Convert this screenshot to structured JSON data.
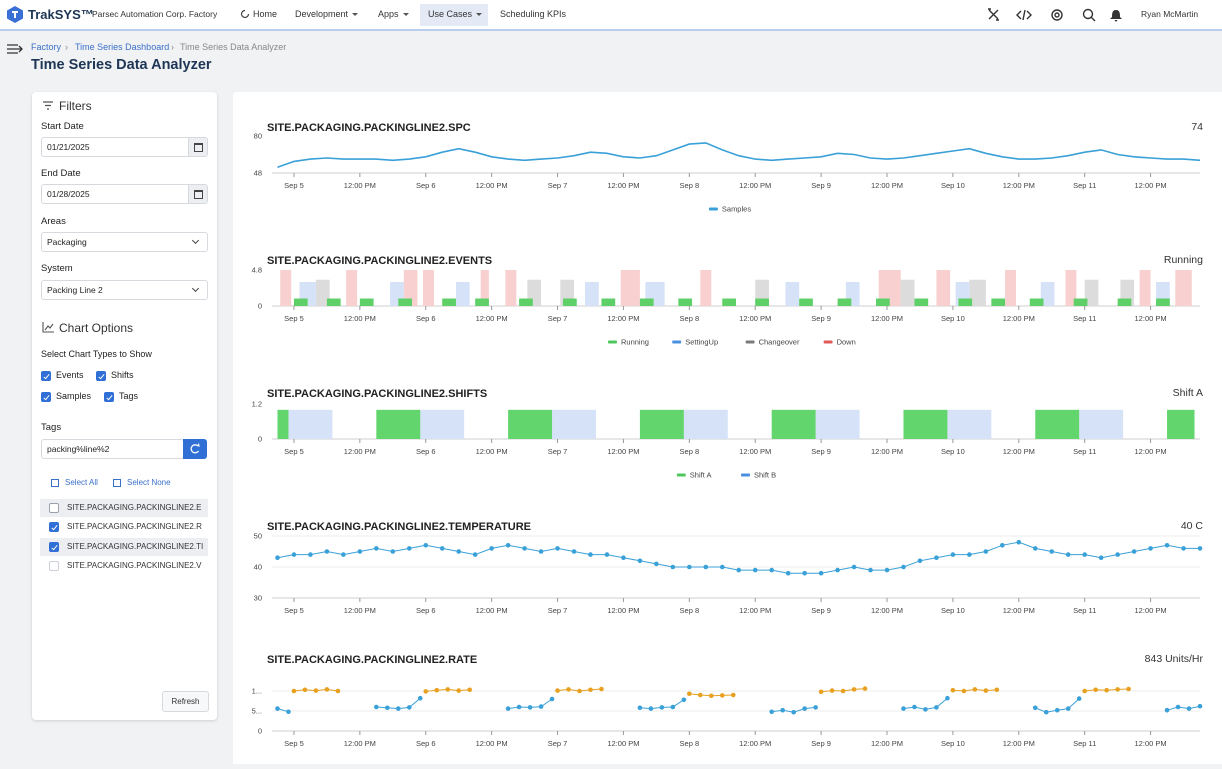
{
  "header": {
    "brand": "TrakSYS™",
    "org": "Parsec Automation Corp. Factory",
    "nav": [
      "Home",
      "Development",
      "Apps",
      "Use Cases",
      "Scheduling KPIs"
    ],
    "user": "Ryan McMartin"
  },
  "breadcrumb": [
    "Factory",
    "Time Series Dashboard",
    "Time Series Data Analyzer"
  ],
  "title": "Time Series Data Analyzer",
  "filters": {
    "heading": "Filters",
    "start_label": "Start Date",
    "start_value": "01/21/2025",
    "end_label": "End Date",
    "end_value": "01/28/2025",
    "areas_label": "Areas",
    "areas_value": "Packaging",
    "system_label": "System",
    "system_value": "Packing Line 2"
  },
  "chart_options": {
    "heading": "Chart Options",
    "types_label": "Select Chart Types to Show",
    "types": [
      {
        "label": "Events",
        "checked": true
      },
      {
        "label": "Shifts",
        "checked": true
      },
      {
        "label": "Samples",
        "checked": true
      },
      {
        "label": "Tags",
        "checked": true
      }
    ]
  },
  "tags": {
    "label": "Tags",
    "value": "packing%line%2",
    "select_all": "Select All",
    "select_none": "Select None",
    "items": [
      {
        "label": "SITE.PACKAGING.PACKINGLINE2.E",
        "checked": false
      },
      {
        "label": "SITE.PACKAGING.PACKINGLINE2.R",
        "checked": true
      },
      {
        "label": "SITE.PACKAGING.PACKINGLINE2.TI",
        "checked": true
      },
      {
        "label": "SITE.PACKAGING.PACKINGLINE2.V",
        "checked": false
      }
    ]
  },
  "refresh": "Refresh",
  "chart_data": [
    {
      "type": "line",
      "title": "SITE.PACKAGING.PACKINGLINE2.SPC",
      "readout": "74",
      "xlim": [
        -4,
        165
      ],
      "xticks": [
        {
          "value": 0,
          "label": "Sep 5"
        },
        {
          "value": 12,
          "label": "12:00 PM"
        },
        {
          "value": 24,
          "label": "Sep 6"
        },
        {
          "value": 36,
          "label": "12:00 PM"
        },
        {
          "value": 48,
          "label": "Sep 7"
        },
        {
          "value": 60,
          "label": "12:00 PM"
        },
        {
          "value": 72,
          "label": "Sep 8"
        },
        {
          "value": 84,
          "label": "12:00 PM"
        },
        {
          "value": 96,
          "label": "Sep 9"
        },
        {
          "value": 108,
          "label": "12:00 PM"
        },
        {
          "value": 120,
          "label": "Sep 10"
        },
        {
          "value": 132,
          "label": "12:00 PM"
        },
        {
          "value": 144,
          "label": "Sep 11"
        },
        {
          "value": 156,
          "label": "12:00 PM"
        }
      ],
      "ylim": [
        48,
        80
      ],
      "yticks": [
        48,
        80
      ],
      "grid": false,
      "legend": "bottom",
      "x": [
        -3,
        0,
        3,
        6,
        9,
        12,
        15,
        18,
        21,
        24,
        27,
        30,
        33,
        36,
        39,
        42,
        45,
        48,
        51,
        54,
        57,
        60,
        63,
        66,
        69,
        72,
        75,
        78,
        81,
        84,
        87,
        90,
        93,
        96,
        99,
        102,
        105,
        108,
        111,
        114,
        117,
        120,
        123,
        126,
        129,
        132,
        135,
        138,
        141,
        144,
        147,
        150,
        153,
        156,
        159,
        162,
        165
      ],
      "series": [
        {
          "name": "Samples",
          "color": "#3aa0d8",
          "values": [
            53,
            58,
            60,
            61,
            60,
            60,
            60,
            59,
            60,
            62,
            66,
            69,
            66,
            62,
            60,
            59,
            60,
            61,
            63,
            66,
            65,
            62,
            61,
            63,
            68,
            73,
            74,
            68,
            63,
            60,
            59,
            60,
            61,
            62,
            65,
            64,
            61,
            60,
            61,
            63,
            65,
            67,
            69,
            65,
            62,
            60,
            60,
            61,
            63,
            66,
            68,
            64,
            62,
            61,
            60,
            60,
            59
          ]
        }
      ]
    },
    {
      "type": "timeline",
      "title": "SITE.PACKAGING.PACKINGLINE2.EVENTS",
      "readout": "Running",
      "xlim": [
        -4,
        165
      ],
      "xticks": [
        {
          "value": 0,
          "label": "Sep 5"
        },
        {
          "value": 12,
          "label": "12:00 PM"
        },
        {
          "value": 24,
          "label": "Sep 6"
        },
        {
          "value": 36,
          "label": "12:00 PM"
        },
        {
          "value": 48,
          "label": "Sep 7"
        },
        {
          "value": 60,
          "label": "12:00 PM"
        },
        {
          "value": 72,
          "label": "Sep 8"
        },
        {
          "value": 84,
          "label": "12:00 PM"
        },
        {
          "value": 96,
          "label": "Sep 9"
        },
        {
          "value": 108,
          "label": "12:00 PM"
        },
        {
          "value": 120,
          "label": "Sep 10"
        },
        {
          "value": 132,
          "label": "12:00 PM"
        },
        {
          "value": 144,
          "label": "Sep 11"
        },
        {
          "value": 156,
          "label": "12:00 PM"
        }
      ],
      "ylim": [
        0,
        4.8
      ],
      "yticks": [
        0,
        4.8
      ],
      "grid": false,
      "legend": "bottom",
      "series": [
        {
          "name": "Running",
          "color": "#4fc75c",
          "fill": "#5fd068",
          "x": [
            0,
            6,
            12,
            19,
            27,
            33,
            41,
            49,
            56,
            63,
            70,
            78,
            84,
            92,
            99,
            106,
            113,
            121,
            127,
            134,
            142,
            150,
            157
          ],
          "x_end": [
            2.5,
            8.5,
            14.5,
            21.5,
            29.5,
            35.5,
            43.5,
            51.5,
            58.5,
            65.5,
            72.5,
            80.5,
            86.5,
            94.5,
            101.5,
            108.5,
            115.5,
            123.5,
            129.5,
            136.5,
            144.5,
            152.5,
            159.5
          ],
          "values": [
            1,
            1,
            1,
            1,
            1,
            1,
            1,
            1,
            1,
            1,
            1,
            1,
            1,
            1,
            1,
            1,
            1,
            1,
            1,
            1,
            1,
            1,
            1
          ]
        },
        {
          "name": "SettingUp",
          "color": "#4a8fe0",
          "fill": "#d6e2f7",
          "x": [
            1,
            17.5,
            29.5,
            53,
            64,
            89.5,
            100.5,
            120.5,
            136,
            157
          ],
          "x_end": [
            4,
            20,
            32,
            55.5,
            67.5,
            92,
            103,
            123,
            138.5,
            159.5
          ],
          "values": [
            3.2,
            3.2,
            3.2,
            3.2,
            3.2,
            3.2,
            3.2,
            3.2,
            3.2,
            3.2
          ]
        },
        {
          "name": "Changeover",
          "color": "#7a7a7a",
          "fill": "#dcdcdc",
          "x": [
            4,
            42.5,
            48.5,
            84,
            110.5,
            123,
            144,
            150.5
          ],
          "x_end": [
            6.5,
            45,
            51,
            86.5,
            113,
            126,
            146.5,
            153
          ],
          "values": [
            3.5,
            3.5,
            3.5,
            3.5,
            3.5,
            3.5,
            3.5,
            3.5
          ]
        },
        {
          "name": "Down",
          "color": "#e05a5a",
          "fill": "#f8d0d0",
          "x": [
            -2.5,
            9.5,
            20,
            23.5,
            34,
            38.5,
            59.5,
            74,
            106.5,
            117,
            129.5,
            140.5,
            154,
            160.5
          ],
          "x_end": [
            -0.5,
            11.5,
            22.5,
            25.5,
            35.5,
            40.5,
            63,
            76,
            110.5,
            119.5,
            131.5,
            142.5,
            156,
            163.5
          ],
          "values": [
            4.8,
            4.8,
            4.8,
            4.8,
            4.8,
            4.8,
            4.8,
            4.8,
            4.8,
            4.8,
            4.8,
            4.8,
            4.8,
            4.8
          ]
        }
      ]
    },
    {
      "type": "timeline",
      "title": "SITE.PACKAGING.PACKINGLINE2.SHIFTS",
      "readout": "Shift A",
      "xlim": [
        -4,
        165
      ],
      "xticks": [
        {
          "value": 0,
          "label": "Sep 5"
        },
        {
          "value": 12,
          "label": "12:00 PM"
        },
        {
          "value": 24,
          "label": "Sep 6"
        },
        {
          "value": 36,
          "label": "12:00 PM"
        },
        {
          "value": 48,
          "label": "Sep 7"
        },
        {
          "value": 60,
          "label": "12:00 PM"
        },
        {
          "value": 72,
          "label": "Sep 8"
        },
        {
          "value": 84,
          "label": "12:00 PM"
        },
        {
          "value": 96,
          "label": "Sep 9"
        },
        {
          "value": 108,
          "label": "12:00 PM"
        },
        {
          "value": 120,
          "label": "Sep 10"
        },
        {
          "value": 132,
          "label": "12:00 PM"
        },
        {
          "value": 144,
          "label": "Sep 11"
        },
        {
          "value": 156,
          "label": "12:00 PM"
        }
      ],
      "ylim": [
        0,
        1.2
      ],
      "yticks": [
        0,
        1.2
      ],
      "grid": false,
      "legend": "bottom",
      "series": [
        {
          "name": "Shift A",
          "color": "#4fc75c",
          "fill": "#62d56c",
          "x": [
            -3,
            15,
            39,
            63,
            87,
            111,
            135,
            159
          ],
          "x_end": [
            -1,
            23,
            47,
            71,
            95,
            119,
            143,
            164
          ],
          "values": [
            1,
            1,
            1,
            1,
            1,
            1,
            1,
            1
          ]
        },
        {
          "name": "Shift B",
          "color": "#4a8fe0",
          "fill": "#d6e2f7",
          "x": [
            -1,
            23,
            47,
            71,
            95,
            119,
            143
          ],
          "x_end": [
            7,
            31,
            55,
            79,
            103,
            127,
            151
          ],
          "values": [
            1,
            1,
            1,
            1,
            1,
            1,
            1
          ]
        }
      ]
    },
    {
      "type": "line",
      "title": "SITE.PACKAGING.PACKINGLINE2.TEMPERATURE",
      "readout": "40 C",
      "xlim": [
        -4,
        165
      ],
      "xticks": [
        {
          "value": 0,
          "label": "Sep 5"
        },
        {
          "value": 12,
          "label": "12:00 PM"
        },
        {
          "value": 24,
          "label": "Sep 6"
        },
        {
          "value": 36,
          "label": "12:00 PM"
        },
        {
          "value": 48,
          "label": "Sep 7"
        },
        {
          "value": 60,
          "label": "12:00 PM"
        },
        {
          "value": 72,
          "label": "Sep 8"
        },
        {
          "value": 84,
          "label": "12:00 PM"
        },
        {
          "value": 96,
          "label": "Sep 9"
        },
        {
          "value": 108,
          "label": "12:00 PM"
        },
        {
          "value": 120,
          "label": "Sep 10"
        },
        {
          "value": 132,
          "label": "12:00 PM"
        },
        {
          "value": 144,
          "label": "Sep 11"
        },
        {
          "value": 156,
          "label": "12:00 PM"
        }
      ],
      "ylim": [
        30,
        50
      ],
      "yticks": [
        30,
        40,
        50
      ],
      "grid": true,
      "markers": true,
      "x": [
        -3,
        0,
        3,
        6,
        9,
        12,
        15,
        18,
        21,
        24,
        27,
        30,
        33,
        36,
        39,
        42,
        45,
        48,
        51,
        54,
        57,
        60,
        63,
        66,
        69,
        72,
        75,
        78,
        81,
        84,
        87,
        90,
        93,
        96,
        99,
        102,
        105,
        108,
        111,
        114,
        117,
        120,
        123,
        126,
        129,
        132,
        135,
        138,
        141,
        144,
        147,
        150,
        153,
        156,
        159,
        162,
        165
      ],
      "series": [
        {
          "color": "#3aa0d8",
          "values": [
            43,
            44,
            44,
            45,
            44,
            45,
            46,
            45,
            46,
            47,
            46,
            45,
            44,
            46,
            47,
            46,
            45,
            46,
            45,
            44,
            44,
            43,
            42,
            41,
            40,
            40,
            40,
            40,
            39,
            39,
            39,
            38,
            38,
            38,
            39,
            40,
            39,
            39,
            40,
            42,
            43,
            44,
            44,
            45,
            47,
            48,
            46,
            45,
            44,
            44,
            43,
            44,
            45,
            46,
            47,
            46,
            46
          ]
        }
      ]
    },
    {
      "type": "line",
      "title": "SITE.PACKAGING.PACKINGLINE2.RATE",
      "readout": "843 Units/Hr",
      "xlim": [
        -4,
        165
      ],
      "xticks": [
        {
          "value": 0,
          "label": "Sep 5"
        },
        {
          "value": 12,
          "label": "12:00 PM"
        },
        {
          "value": 24,
          "label": "Sep 6"
        },
        {
          "value": 36,
          "label": "12:00 PM"
        },
        {
          "value": 48,
          "label": "Sep 7"
        },
        {
          "value": 60,
          "label": "12:00 PM"
        },
        {
          "value": 72,
          "label": "Sep 8"
        },
        {
          "value": 84,
          "label": "12:00 PM"
        },
        {
          "value": 96,
          "label": "Sep 9"
        },
        {
          "value": 108,
          "label": "12:00 PM"
        },
        {
          "value": 120,
          "label": "Sep 10"
        },
        {
          "value": 132,
          "label": "12:00 PM"
        },
        {
          "value": 144,
          "label": "Sep 11"
        },
        {
          "value": 156,
          "label": "12:00 PM"
        }
      ],
      "ylim": [
        0,
        1500
      ],
      "yticks": [
        0,
        {
          "value": 500,
          "label": "5..."
        },
        {
          "value": 1000,
          "label": "1..."
        }
      ],
      "grid": true,
      "markers": true,
      "series": [
        {
          "color": "#3aa0d8",
          "x": [
            -3,
            -1,
            null,
            15,
            17,
            19,
            21,
            23,
            null,
            39,
            41,
            43,
            45,
            47,
            null,
            63,
            65,
            67,
            69,
            71,
            null,
            87,
            89,
            91,
            93,
            95,
            null,
            111,
            113,
            115,
            117,
            119,
            null,
            135,
            137,
            139,
            141,
            143,
            null,
            159,
            161,
            163,
            165
          ],
          "values": [
            560,
            480,
            null,
            600,
            580,
            560,
            590,
            820,
            null,
            560,
            600,
            590,
            610,
            800,
            null,
            580,
            560,
            590,
            600,
            780,
            null,
            480,
            520,
            470,
            560,
            590,
            null,
            560,
            600,
            540,
            590,
            820,
            null,
            580,
            470,
            520,
            560,
            810,
            null,
            520,
            600,
            560,
            620
          ]
        },
        {
          "color": "#e8a020",
          "x": [
            0,
            2,
            4,
            6,
            8,
            null,
            24,
            26,
            28,
            30,
            32,
            null,
            48,
            50,
            52,
            54,
            56,
            null,
            72,
            74,
            76,
            78,
            80,
            null,
            96,
            98,
            100,
            102,
            104,
            null,
            120,
            122,
            124,
            126,
            128,
            null,
            144,
            146,
            148,
            150,
            152
          ],
          "values": [
            1000,
            1030,
            1010,
            1040,
            1000,
            null,
            990,
            1020,
            1040,
            1010,
            1030,
            null,
            1010,
            1040,
            1000,
            1030,
            1050,
            null,
            930,
            900,
            880,
            890,
            900,
            null,
            980,
            1010,
            1000,
            1040,
            1060,
            null,
            1020,
            1000,
            1040,
            1010,
            1030,
            null,
            1000,
            1030,
            1020,
            1040,
            1050
          ]
        }
      ]
    }
  ]
}
